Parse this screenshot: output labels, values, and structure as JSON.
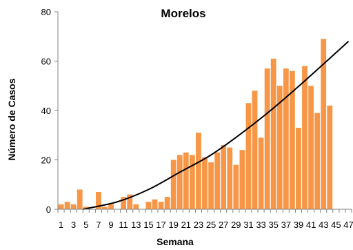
{
  "chart_data": {
    "type": "bar",
    "title": "Morelos",
    "xlabel": "Semana",
    "ylabel": "Número de Casos",
    "x_tick_labels": [
      "1",
      "3",
      "5",
      "7",
      "9",
      "11",
      "13",
      "15",
      "17",
      "19",
      "21",
      "23",
      "25",
      "27",
      "29",
      "31",
      "33",
      "35",
      "37",
      "39",
      "41",
      "43",
      "45",
      "47"
    ],
    "y_tick_labels": [
      "0",
      "20",
      "40",
      "60",
      "80"
    ],
    "ylim": [
      0,
      80
    ],
    "xlim": [
      1,
      47
    ],
    "grid": false,
    "legend": "none",
    "series": [
      {
        "color": "#F79646",
        "x": [
          1,
          2,
          3,
          4,
          5,
          6,
          7,
          8,
          9,
          10,
          11,
          12,
          13,
          14,
          15,
          16,
          17,
          18,
          19,
          20,
          21,
          22,
          23,
          24,
          25,
          26,
          27,
          28,
          29,
          30,
          31,
          32,
          33,
          34,
          35,
          36,
          37,
          38,
          39,
          40,
          41,
          42,
          43,
          44,
          45,
          46,
          47
        ],
        "values": [
          2,
          3,
          2,
          8,
          1,
          0,
          7,
          1,
          2,
          0,
          5,
          6,
          2,
          0,
          3,
          4,
          3,
          5,
          20,
          22,
          23,
          22,
          31,
          21,
          19,
          23,
          26,
          25,
          18,
          24,
          43,
          48,
          29,
          57,
          61,
          50,
          57,
          56,
          33,
          58,
          50,
          39,
          69,
          42,
          0,
          0,
          0
        ]
      }
    ],
    "trendline": {
      "type": "polynomial",
      "color": "#000000",
      "x": [
        4.5,
        10,
        15,
        20,
        25,
        30,
        35,
        40,
        47
      ],
      "y": [
        0,
        3,
        8,
        15,
        22,
        31,
        41,
        52,
        68
      ]
    }
  }
}
